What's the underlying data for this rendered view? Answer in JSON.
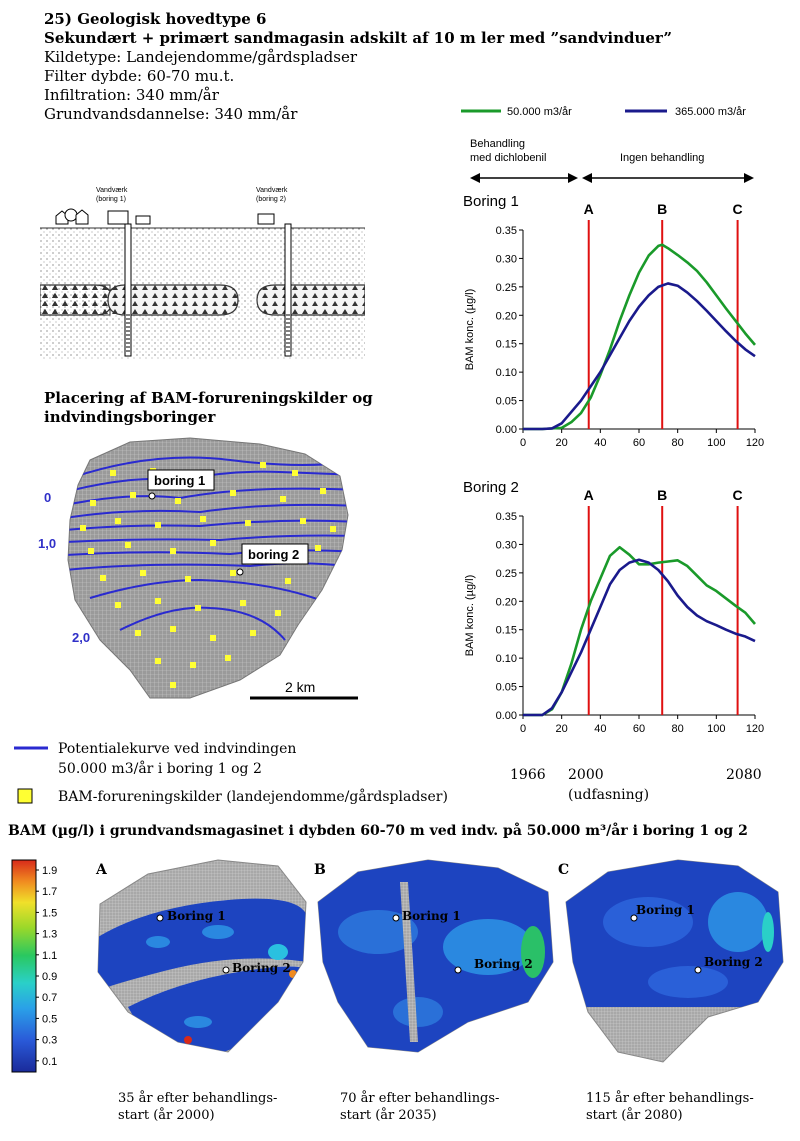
{
  "header": {
    "title1": "25) Geologisk hovedtype 6",
    "title2": "Sekundært + primært sandmagasin adskilt af 10 m ler med ”sandvinduer”",
    "line1": "Kildetype: Landejendomme/gårdspladser",
    "line2": "Filter dybde: 60-70 mu.t.",
    "line3": "Infiltration: 340 mm/år",
    "line4": "Grundvandsdannelse: 340 mm/år"
  },
  "legend_top": {
    "green_label": "50.000 m3/år",
    "blue_label": "365.000 m3/år",
    "green_color": "#1a9a2a",
    "blue_color": "#1a1a8c"
  },
  "treatment": {
    "left": "Behandling med dichlobenil",
    "left_line1": "Behandling",
    "left_line2": "med dichlobenil",
    "right": "Ingen behandling"
  },
  "cross_section": {
    "well1": "Vandværk (boring 1)",
    "well1_l1": "Vandværk",
    "well1_l2": "(boring 1)",
    "well2": "Vandværk (boring 2)",
    "well2_l1": "Vandværk",
    "well2_l2": "(boring 2)"
  },
  "map": {
    "heading1": "Placering af BAM-forureningskilder og",
    "heading2": "indvindingsboringer",
    "boring1": "boring 1",
    "boring2": "boring 2",
    "contour_0": "0",
    "contour_1": "1,0",
    "contour_2": "2,0",
    "scale": "2 km"
  },
  "legend_bottom": {
    "line_label1": "Potentialekurve ved indvindingen",
    "line_label2": "50.000 m3/år i boring 1 og 2",
    "square_label": "BAM-forureningskilder (landejendomme/gårdspladser)"
  },
  "timeline": {
    "y1966": "1966",
    "y2000": "2000",
    "udfasning": "(udfasning)",
    "y2080": "2080"
  },
  "chart_data": [
    {
      "type": "line",
      "title": "Boring 1",
      "ylabel": "BAM konc. (µg/l)",
      "xlim": [
        0,
        120
      ],
      "ylim": [
        0,
        0.35
      ],
      "xticks": [
        0,
        20,
        40,
        60,
        80,
        100,
        120
      ],
      "yticks": [
        "0.00",
        "0.05",
        "0.10",
        "0.15",
        "0.20",
        "0.25",
        "0.30",
        "0.35"
      ],
      "markers": [
        {
          "label": "A",
          "x": 34
        },
        {
          "label": "B",
          "x": 72
        },
        {
          "label": "C",
          "x": 111
        }
      ],
      "series": [
        {
          "name": "50.000 m3/år",
          "color": "#1a9a2a",
          "x": [
            0,
            10,
            20,
            25,
            30,
            35,
            40,
            45,
            50,
            55,
            60,
            65,
            70,
            72,
            75,
            80,
            85,
            90,
            95,
            100,
            105,
            110,
            115,
            120
          ],
          "values": [
            0,
            0,
            0.002,
            0.012,
            0.028,
            0.055,
            0.095,
            0.14,
            0.19,
            0.235,
            0.275,
            0.305,
            0.322,
            0.324,
            0.318,
            0.306,
            0.293,
            0.278,
            0.258,
            0.235,
            0.212,
            0.19,
            0.168,
            0.148
          ]
        },
        {
          "name": "365.000 m3/år",
          "color": "#1a1a8c",
          "x": [
            0,
            10,
            15,
            20,
            25,
            30,
            35,
            40,
            45,
            50,
            55,
            60,
            65,
            70,
            75,
            80,
            85,
            90,
            95,
            100,
            105,
            110,
            115,
            120
          ],
          "values": [
            0,
            0,
            0.001,
            0.01,
            0.03,
            0.05,
            0.075,
            0.1,
            0.13,
            0.16,
            0.19,
            0.215,
            0.235,
            0.25,
            0.256,
            0.252,
            0.24,
            0.225,
            0.208,
            0.19,
            0.172,
            0.155,
            0.14,
            0.128
          ]
        }
      ]
    },
    {
      "type": "line",
      "title": "Boring 2",
      "ylabel": "BAM konc. (µg/l)",
      "xlim": [
        0,
        120
      ],
      "ylim": [
        0,
        0.35
      ],
      "xticks": [
        0,
        20,
        40,
        60,
        80,
        100,
        120
      ],
      "yticks": [
        "0.00",
        "0.05",
        "0.10",
        "0.15",
        "0.20",
        "0.25",
        "0.30",
        "0.35"
      ],
      "markers": [
        {
          "label": "A",
          "x": 34
        },
        {
          "label": "B",
          "x": 72
        },
        {
          "label": "C",
          "x": 111
        }
      ],
      "series": [
        {
          "name": "50.000 m3/år",
          "color": "#1a9a2a",
          "x": [
            0,
            10,
            15,
            20,
            25,
            30,
            35,
            40,
            45,
            50,
            55,
            60,
            65,
            70,
            75,
            80,
            85,
            90,
            95,
            100,
            105,
            110,
            115,
            120
          ],
          "values": [
            0,
            0,
            0.01,
            0.04,
            0.09,
            0.15,
            0.2,
            0.24,
            0.28,
            0.295,
            0.282,
            0.265,
            0.265,
            0.268,
            0.27,
            0.272,
            0.262,
            0.245,
            0.228,
            0.218,
            0.205,
            0.192,
            0.18,
            0.16
          ]
        },
        {
          "name": "365.000 m3/år",
          "color": "#1a1a8c",
          "x": [
            0,
            10,
            15,
            20,
            25,
            30,
            35,
            40,
            45,
            50,
            55,
            60,
            65,
            70,
            75,
            80,
            85,
            90,
            95,
            100,
            105,
            110,
            115,
            120
          ],
          "values": [
            0,
            0,
            0.012,
            0.04,
            0.075,
            0.11,
            0.15,
            0.19,
            0.23,
            0.255,
            0.268,
            0.273,
            0.268,
            0.255,
            0.235,
            0.21,
            0.19,
            0.175,
            0.165,
            0.158,
            0.15,
            0.143,
            0.138,
            0.13
          ]
        }
      ]
    }
  ],
  "bottom": {
    "heading": "BAM (µg/l) i grundvandsmagasinet i dybden 60-70 m ved indv. på 50.000 m³/år i boring 1 og 2",
    "colorbar": [
      "1.9",
      "1.7",
      "1.5",
      "1.3",
      "1.1",
      "0.9",
      "0.7",
      "0.5",
      "0.3",
      "0.1"
    ],
    "panels": [
      {
        "letter": "A",
        "b1": "Boring 1",
        "b2": "Boring 2",
        "cap1": "35 år efter behandlings-",
        "cap2": "start (år 2000)"
      },
      {
        "letter": "B",
        "b1": "Boring 1",
        "b2": "Boring 2",
        "cap1": "70 år efter behandlings-",
        "cap2": "start (år 2035)"
      },
      {
        "letter": "C",
        "b1": "Boring 1",
        "b2": "Boring 2",
        "cap1": "115 år efter behandlings-",
        "cap2": "start (år 2080)"
      }
    ]
  }
}
